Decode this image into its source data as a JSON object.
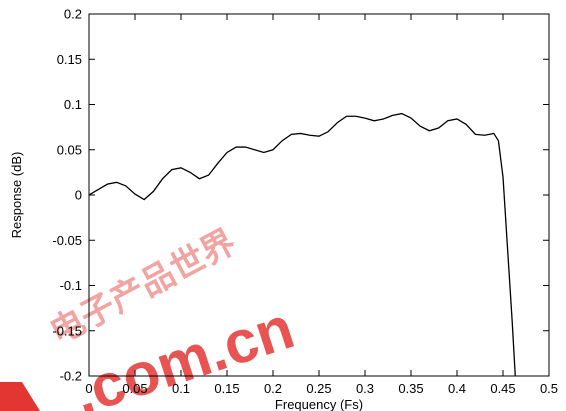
{
  "chart_data": {
    "type": "line",
    "xlabel": "Frequency (Fs)",
    "ylabel": "Response (dB)",
    "xlim": [
      0,
      0.5
    ],
    "ylim": [
      -0.2,
      0.2
    ],
    "x_ticks": [
      "0",
      "0.05",
      "0.1",
      "0.15",
      "0.2",
      "0.25",
      "0.3",
      "0.35",
      "0.4",
      "0.45",
      "0.5"
    ],
    "y_ticks": [
      "0.2",
      "0.15",
      "0.1",
      "0.05",
      "0",
      "-0.05",
      "-0.1",
      "-0.15",
      "-0.2"
    ],
    "grid": false,
    "series": [
      {
        "x": [
          0,
          0.01,
          0.02,
          0.03,
          0.04,
          0.05,
          0.06,
          0.07,
          0.08,
          0.09,
          0.1,
          0.11,
          0.12,
          0.13,
          0.14,
          0.15,
          0.16,
          0.17,
          0.18,
          0.19,
          0.2,
          0.21,
          0.22,
          0.23,
          0.24,
          0.25,
          0.26,
          0.27,
          0.28,
          0.29,
          0.3,
          0.31,
          0.32,
          0.33,
          0.34,
          0.35,
          0.36,
          0.37,
          0.38,
          0.39,
          0.4,
          0.41,
          0.42,
          0.43,
          0.435,
          0.44,
          0.445,
          0.45,
          0.455,
          0.46,
          0.465
        ],
        "y": [
          0,
          0.006,
          0.012,
          0.014,
          0.01,
          0.001,
          -0.005,
          0.004,
          0.018,
          0.028,
          0.03,
          0.025,
          0.018,
          0.022,
          0.035,
          0.047,
          0.053,
          0.053,
          0.05,
          0.047,
          0.05,
          0.06,
          0.067,
          0.068,
          0.066,
          0.065,
          0.07,
          0.08,
          0.087,
          0.087,
          0.085,
          0.082,
          0.084,
          0.088,
          0.09,
          0.085,
          0.076,
          0.071,
          0.074,
          0.082,
          0.084,
          0.078,
          0.067,
          0.066,
          0.067,
          0.068,
          0.06,
          0.02,
          -0.06,
          -0.14,
          -0.23
        ]
      }
    ]
  },
  "watermark": {
    "chinese": "电子产品世界",
    "domain": ".com.cn",
    "color": "#e0201c"
  }
}
